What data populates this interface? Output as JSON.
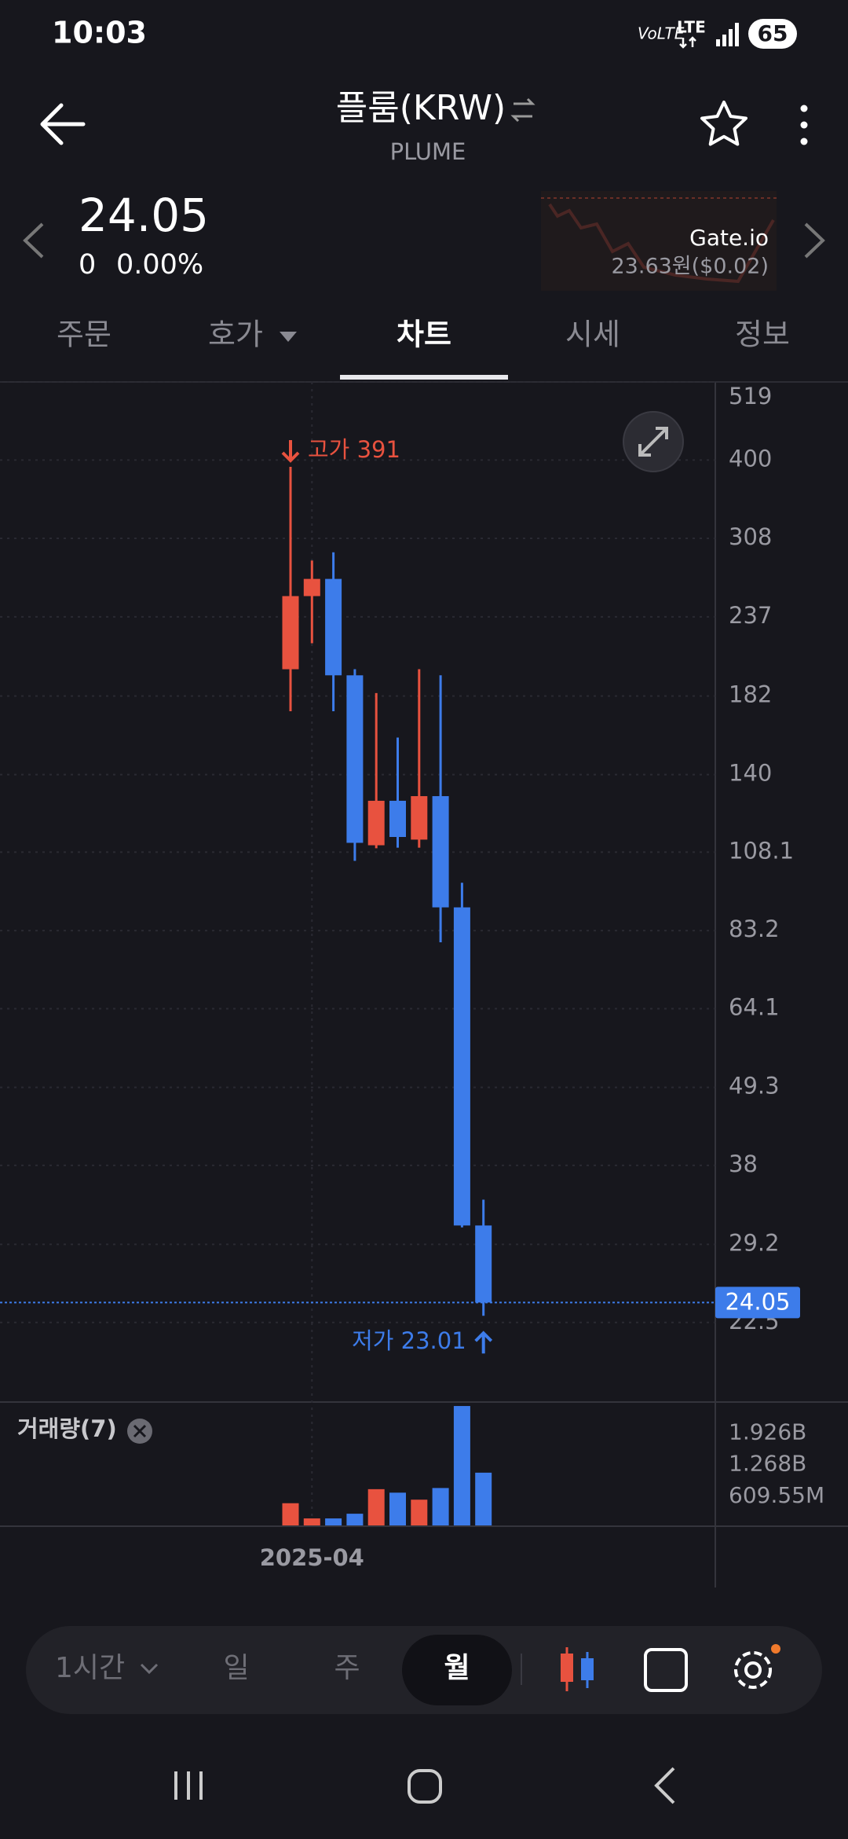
{
  "status_bar": {
    "time": "10:03",
    "volte": "VoLTE",
    "network": "LTE",
    "battery": "65"
  },
  "header": {
    "title": "플룸(KRW)",
    "subtitle": "PLUME"
  },
  "price": {
    "current": "24.05",
    "change": "0",
    "change_rate": "0.00%"
  },
  "exchange": {
    "name": "Gate.io",
    "price": "23.63원($0.02)"
  },
  "tabs": [
    "주문",
    "호가",
    "차트",
    "시세",
    "정보"
  ],
  "chart_data": {
    "type": "candlestick",
    "x": [
      null,
      "2025-04",
      null,
      null,
      null,
      null,
      null,
      null,
      null,
      null
    ],
    "open": [
      199,
      254,
      269,
      195,
      110.6,
      128.3,
      112.7,
      130.3,
      89.9,
      31.1
    ],
    "high": [
      391,
      286,
      294,
      199,
      183.8,
      158.4,
      199,
      195,
      97.6,
      33.9
    ],
    "low": [
      173,
      217,
      173,
      105,
      109.5,
      109.7,
      109.7,
      80,
      30.9,
      23.01
    ],
    "close": [
      254,
      269,
      195,
      111.5,
      128.3,
      113.7,
      130.3,
      89.9,
      31.1,
      24.05
    ],
    "up_color": "#e8523f",
    "down_color": "#3d7cea",
    "log_scale": true,
    "grid": true,
    "ylim": [
      17.3,
      519
    ],
    "yticks": [
      519,
      400,
      308,
      237,
      182,
      140,
      108.1,
      83.2,
      64.1,
      49.3,
      38,
      29.2,
      22.5
    ],
    "last_price": 24.05,
    "high_label": "고가 391",
    "low_label": "저가 23.01",
    "volume": {
      "title": "거래량(7)",
      "values": [
        463000000,
        146000000,
        146000000,
        244000000,
        756000000,
        683000000,
        537000000,
        780000000,
        2490000000,
        1100000000
      ],
      "ylim": [
        0,
        2540000000
      ],
      "yticks": [
        {
          "value": 1926000000,
          "label": "1.926B"
        },
        {
          "value": 1268000000,
          "label": "1.268B"
        },
        {
          "value": 609550000,
          "label": "609.55M"
        }
      ]
    }
  },
  "toolbar": {
    "interval": "1시간",
    "periods": [
      "일",
      "주",
      "월"
    ],
    "selected": "월"
  }
}
